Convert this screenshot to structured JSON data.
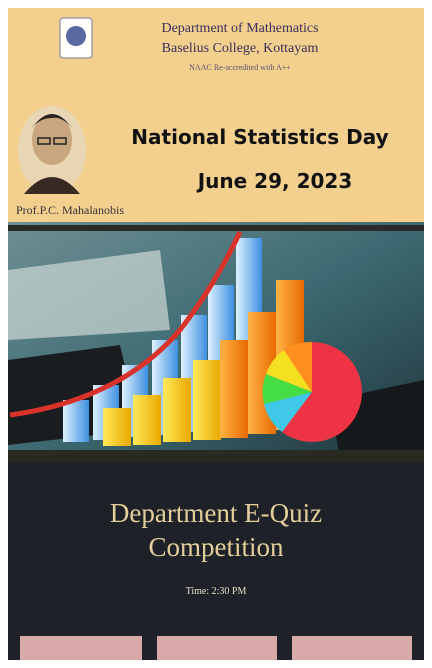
{
  "header": {
    "department": "Department of Mathematics",
    "college": "Baselius College, Kottayam",
    "accreditation": "NAAC Re-accredited with A++"
  },
  "event": {
    "title": "National Statistics Day",
    "date": "June 29, 2023"
  },
  "portrait_caption": "Prof.P.C. Mahalanobis",
  "quiz": {
    "title_lines": [
      "Department E-Quiz",
      "Competition"
    ],
    "time": "Time: 2:30 PM"
  }
}
